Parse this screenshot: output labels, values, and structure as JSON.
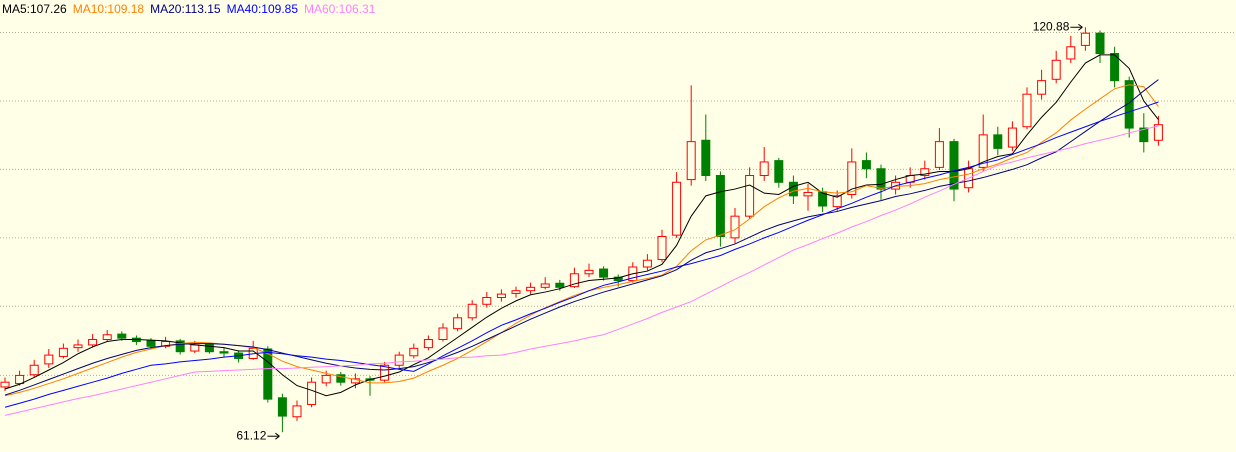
{
  "chart_data": {
    "type": "candlestick",
    "candles": [
      [
        67.8,
        69.2,
        67.2,
        68.5
      ],
      [
        68.3,
        70.2,
        68,
        69.5
      ],
      [
        69.6,
        71.8,
        69.2,
        71
      ],
      [
        71.2,
        73.4,
        70.6,
        72.5
      ],
      [
        72.3,
        74.2,
        72,
        73.5
      ],
      [
        73.6,
        74.8,
        73,
        74
      ],
      [
        74,
        75.6,
        73.6,
        74.8
      ],
      [
        74.8,
        76.2,
        74.5,
        75.5
      ],
      [
        75.6,
        76,
        74.6,
        75
      ],
      [
        75,
        75.4,
        74,
        74.5
      ],
      [
        74.6,
        75,
        73.3,
        73.8
      ],
      [
        73.8,
        75.2,
        73.5,
        74.5
      ],
      [
        74.6,
        74.9,
        72.6,
        73
      ],
      [
        73.1,
        74.6,
        72.8,
        74
      ],
      [
        74.1,
        74.3,
        72.7,
        73
      ],
      [
        73,
        73.6,
        72.2,
        72.8
      ],
      [
        72.8,
        73.2,
        71.4,
        72
      ],
      [
        72,
        74.6,
        71.8,
        73.5
      ],
      [
        73.4,
        73.8,
        65.5,
        66
      ],
      [
        66.2,
        66.8,
        61.12,
        63.5
      ],
      [
        63.4,
        65.8,
        62.8,
        65
      ],
      [
        65.2,
        69.2,
        64.8,
        68.5
      ],
      [
        68.4,
        70.2,
        67.9,
        69.5
      ],
      [
        69.6,
        70,
        68,
        68.5
      ],
      [
        68.4,
        69.8,
        67.6,
        69
      ],
      [
        69,
        69.4,
        66.5,
        68.8
      ],
      [
        68.8,
        71.5,
        68.5,
        71
      ],
      [
        71,
        73,
        70.6,
        72.5
      ],
      [
        72.4,
        74.2,
        72,
        73.5
      ],
      [
        73.6,
        75.4,
        73.2,
        74.8
      ],
      [
        74.8,
        77.2,
        74.5,
        76.5
      ],
      [
        76.4,
        78.6,
        76,
        78
      ],
      [
        78,
        80.6,
        77.6,
        80
      ],
      [
        80,
        81.8,
        79.5,
        81
      ],
      [
        81,
        82.2,
        80.4,
        81.5
      ],
      [
        81.6,
        82.6,
        81,
        82
      ],
      [
        82,
        83.2,
        81.5,
        82.5
      ],
      [
        82.5,
        84,
        82.2,
        83
      ],
      [
        83.1,
        83.6,
        82,
        82.5
      ],
      [
        82.6,
        85.4,
        82.4,
        84.5
      ],
      [
        84.5,
        86,
        84,
        85
      ],
      [
        85.2,
        85.6,
        83.5,
        84
      ],
      [
        84,
        84.4,
        82.6,
        83.5
      ],
      [
        83.5,
        86.2,
        83.2,
        85.5
      ],
      [
        85.5,
        87.4,
        85,
        86.5
      ],
      [
        86.6,
        91,
        86.2,
        90
      ],
      [
        90.2,
        99.5,
        89.8,
        98
      ],
      [
        98.4,
        112.3,
        97.5,
        104
      ],
      [
        104.2,
        108,
        98.2,
        99
      ],
      [
        99,
        99.6,
        88.5,
        90
      ],
      [
        89.8,
        94.2,
        89,
        93
      ],
      [
        93,
        100.2,
        92.6,
        99
      ],
      [
        99,
        103.2,
        98.2,
        101
      ],
      [
        101.2,
        101.6,
        97.2,
        98
      ],
      [
        98,
        99,
        94.8,
        96
      ],
      [
        96,
        97.8,
        93.8,
        96.5
      ],
      [
        96.6,
        97.2,
        93.6,
        94.5
      ],
      [
        94.4,
        96.8,
        93.8,
        96
      ],
      [
        96.2,
        103,
        95.6,
        101
      ],
      [
        101.2,
        102.4,
        98.6,
        100
      ],
      [
        100,
        100.6,
        95.4,
        97
      ],
      [
        97,
        99,
        96.2,
        98
      ],
      [
        98,
        100.2,
        97.2,
        99
      ],
      [
        99,
        101.2,
        98.4,
        100
      ],
      [
        100.2,
        106,
        99.8,
        104
      ],
      [
        104,
        104.4,
        95.2,
        97
      ],
      [
        97.2,
        101.2,
        96.5,
        100
      ],
      [
        100.2,
        108,
        99.6,
        105
      ],
      [
        105,
        106.2,
        102,
        103
      ],
      [
        103.2,
        107,
        102.6,
        106
      ],
      [
        106.2,
        112,
        105.8,
        111
      ],
      [
        111,
        114.6,
        110.2,
        113
      ],
      [
        113.2,
        117.4,
        112.6,
        116
      ],
      [
        116.2,
        119.6,
        115.6,
        118
      ],
      [
        118.2,
        120.88,
        117.4,
        120
      ],
      [
        120,
        120.4,
        115.6,
        117
      ],
      [
        117,
        118,
        112,
        113
      ],
      [
        113,
        113.6,
        104.6,
        106
      ],
      [
        106,
        108.2,
        102.4,
        104
      ],
      [
        104.2,
        107.8,
        103.4,
        106.5
      ]
    ],
    "series": [
      {
        "name": "MA5:107.26",
        "color": "#000000",
        "values": [
          67.5,
          68.2,
          69.2,
          70.3,
          71.4,
          72.7,
          73.7,
          74.5,
          74.8,
          74.8,
          74.7,
          74.6,
          74.3,
          74,
          73.8,
          73.6,
          73.1,
          73.1,
          71.5,
          69.6,
          68,
          67.3,
          66.5,
          67,
          68.1,
          68.9,
          69.4,
          70,
          71.1,
          72.1,
          73.6,
          75.1,
          76.6,
          78.1,
          79.4,
          80.5,
          81.4,
          81.8,
          82.3,
          83,
          83.5,
          83.7,
          83.9,
          84.5,
          84.9,
          85.9,
          88.7,
          93,
          96,
          96.6,
          97,
          97.6,
          96.4,
          96.2,
          97.4,
          98,
          96.4,
          95.8,
          97,
          97.6,
          97.7,
          98.4,
          99,
          99.2,
          99.6,
          99.6,
          100,
          101,
          101.8,
          102.2,
          105,
          107.6,
          109.8,
          112.8,
          115.6,
          116.8,
          116.8,
          114.8,
          110,
          107.26
        ]
      },
      {
        "name": "MA10:109.18",
        "color": "#ff8000",
        "values": [
          66.5,
          67,
          67.6,
          68.3,
          69,
          69.8,
          70.6,
          71.4,
          72.2,
          72.9,
          73.4,
          73.9,
          74.2,
          74.4,
          74.3,
          74.1,
          73.9,
          73.6,
          72.7,
          71.6,
          70.8,
          70.3,
          69.8,
          69.3,
          68.9,
          68.4,
          68.4,
          68.6,
          69.1,
          70.1,
          71,
          72,
          73.2,
          74.5,
          75.8,
          77.2,
          78.4,
          79.5,
          80.4,
          81.3,
          82,
          82.5,
          82.9,
          83.4,
          83.8,
          84.3,
          85.6,
          87.9,
          89.5,
          90.2,
          91,
          92.6,
          94.4,
          95.7,
          96.7,
          97.1,
          96.6,
          96.4,
          96.6,
          97.5,
          97.1,
          97.4,
          97.5,
          97.8,
          98.4,
          98.8,
          99.2,
          100,
          100.7,
          101.6,
          102.4,
          103.9,
          105.3,
          107.2,
          108.8,
          110.3,
          111.8,
          112.4,
          112.1,
          109.18
        ]
      },
      {
        "name": "MA20:113.15",
        "color": "#000080",
        "values": [
          66.6,
          67.3,
          68.1,
          68.9,
          69.7,
          70.5,
          71.3,
          72,
          72.6,
          73.2,
          73.6,
          73.9,
          74.1,
          74.2,
          74.2,
          74.1,
          73.9,
          73.7,
          73.3,
          72.8,
          72.3,
          71.8,
          71.3,
          70.9,
          70.6,
          70.4,
          70.3,
          70.5,
          70.8,
          71.4,
          72.1,
          72.9,
          73.8,
          74.8,
          75.8,
          76.8,
          77.8,
          78.7,
          79.6,
          80.4,
          81.1,
          81.8,
          82.4,
          83,
          83.6,
          84.2,
          85.1,
          86.5,
          87.6,
          88.2,
          88.9,
          89.9,
          90.9,
          91.7,
          92.3,
          92.9,
          93.3,
          93.7,
          94.3,
          94.8,
          95.3,
          95.9,
          96.3,
          96.8,
          97.4,
          97.8,
          98.2,
          98.7,
          99.3,
          99.9,
          100.6,
          101.6,
          102.5,
          104,
          105.5,
          107,
          108.4,
          109.7,
          111.5,
          113.15
        ]
      },
      {
        "name": "MA40:109.85",
        "color": "#0000ff",
        "values": [
          64.8,
          65.4,
          66,
          66.7,
          67.3,
          67.9,
          68.5,
          69.1,
          69.8,
          70.4,
          71,
          71.2,
          71.5,
          71.7,
          71.9,
          72.2,
          72.4,
          72.7,
          72.9,
          72.7,
          72.4,
          72.2,
          71.9,
          71.7,
          71.4,
          71.1,
          70.8,
          70.4,
          70.1,
          71.2,
          72.4,
          73.5,
          74.6,
          75.8,
          76.9,
          77.7,
          78.6,
          79.4,
          80.3,
          81.1,
          82,
          82.8,
          83.3,
          83.9,
          84.4,
          84.9,
          85.5,
          86,
          86.6,
          87.2,
          88.1,
          88.9,
          89.8,
          90.6,
          91.5,
          92.4,
          93.2,
          94.1,
          94.9,
          95.8,
          96.6,
          97.5,
          98,
          98.6,
          99.1,
          99.7,
          100.2,
          100.8,
          101.3,
          102.1,
          102.9,
          103.7,
          104.6,
          105.4,
          106.2,
          107,
          107.7,
          108.4,
          109.1,
          109.85
        ]
      },
      {
        "name": "MA60:106.31",
        "color": "#ff80ff",
        "values": [
          63.6,
          64.1,
          64.6,
          65.1,
          65.6,
          66.1,
          66.5,
          67,
          67.5,
          68,
          68.5,
          69,
          69.5,
          70,
          70.1,
          70.2,
          70.3,
          70.4,
          70.5,
          70.5,
          70.6,
          70.7,
          70.8,
          70.9,
          71,
          71.2,
          71.3,
          71.5,
          71.6,
          71.8,
          71.9,
          72.1,
          72.2,
          72.4,
          72.5,
          72.9,
          73.4,
          73.8,
          74.2,
          74.6,
          75.1,
          75.5,
          76.3,
          77.1,
          77.9,
          78.8,
          79.6,
          80.4,
          81.5,
          82.6,
          83.7,
          84.7,
          85.8,
          86.9,
          88,
          88.8,
          89.7,
          90.5,
          91.4,
          92.2,
          93.1,
          93.9,
          94.8,
          95.8,
          96.7,
          97.7,
          98.6,
          99.6,
          100.5,
          101,
          101.6,
          102.1,
          102.6,
          103.1,
          103.7,
          104.2,
          104.7,
          105.3,
          105.8,
          106.31
        ]
      }
    ],
    "ylim": [
      58.2,
      124.9
    ],
    "yticks": [
      69.5,
      79.7,
      89.8,
      99.9,
      110,
      120.1
    ],
    "grid": true,
    "up_color": "#ff0000",
    "down_color": "#008000",
    "max_label": 120.88,
    "min_label": 61.12
  }
}
